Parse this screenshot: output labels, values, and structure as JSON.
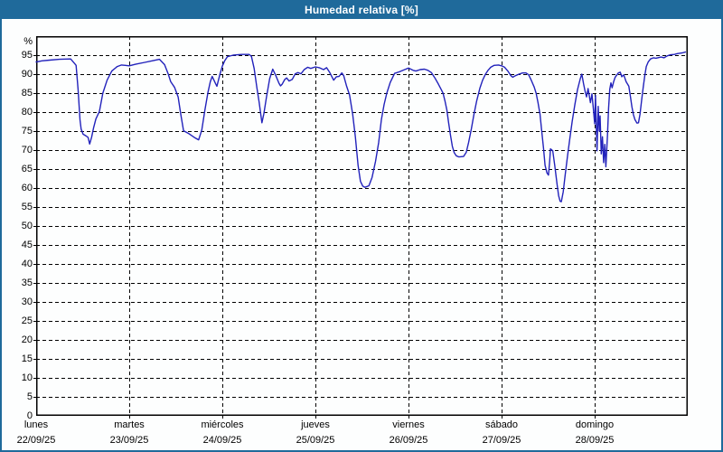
{
  "window": {
    "title": "Humedad relativa [%]"
  },
  "colors": {
    "titlebar_bg": "#1f6a9b",
    "window_border": "#1f6a9b",
    "line": "#2222bb",
    "grid": "#000000",
    "axis_box": "#000000",
    "background": "#fdfefe",
    "title_text": "#ffffff"
  },
  "chart_data": {
    "type": "line",
    "title": "Humedad relativa [%]",
    "ylabel": "%",
    "xlabel": "",
    "ylim": [
      0,
      100
    ],
    "grid": true,
    "legend": "none",
    "yticks": [
      0,
      5,
      10,
      15,
      20,
      25,
      30,
      35,
      40,
      45,
      50,
      55,
      60,
      65,
      70,
      75,
      80,
      85,
      90,
      95
    ],
    "x_days": [
      {
        "name": "lunes",
        "date": "22/09/25"
      },
      {
        "name": "martes",
        "date": "23/09/25"
      },
      {
        "name": "miércoles",
        "date": "24/09/25"
      },
      {
        "name": "jueves",
        "date": "25/09/25"
      },
      {
        "name": "viernes",
        "date": "26/09/25"
      },
      {
        "name": "sábado",
        "date": "27/09/25"
      },
      {
        "name": "domingo",
        "date": "28/09/25"
      }
    ],
    "x_range_hours": [
      0,
      168
    ],
    "series": [
      {
        "name": "Humedad relativa",
        "units": "%",
        "points": [
          [
            0,
            93.2
          ],
          [
            1.5,
            93.5
          ],
          [
            3.5,
            93.7
          ],
          [
            6,
            93.9
          ],
          [
            8.9,
            94
          ],
          [
            10,
            92.7
          ],
          [
            10.3,
            92.3
          ],
          [
            10.8,
            86
          ],
          [
            11.3,
            78
          ],
          [
            11.6,
            75.5
          ],
          [
            12.1,
            74.2
          ],
          [
            12.9,
            73.7
          ],
          [
            13.4,
            73.3
          ],
          [
            13.8,
            71.6
          ],
          [
            14.3,
            73.4
          ],
          [
            14.8,
            75.8
          ],
          [
            15.4,
            78.2
          ],
          [
            16.3,
            80.2
          ],
          [
            17.2,
            85
          ],
          [
            18.3,
            88.4
          ],
          [
            19.5,
            90.8
          ],
          [
            20.9,
            92
          ],
          [
            22,
            92.4
          ],
          [
            23,
            92.3
          ],
          [
            24,
            92.2
          ],
          [
            25.6,
            92.6
          ],
          [
            28,
            93.1
          ],
          [
            30.3,
            93.6
          ],
          [
            31.8,
            93.9
          ],
          [
            33.1,
            92.5
          ],
          [
            34,
            90.2
          ],
          [
            34.7,
            88
          ],
          [
            35.7,
            86.5
          ],
          [
            36.6,
            84
          ],
          [
            37.3,
            79.3
          ],
          [
            38,
            75.1
          ],
          [
            39.4,
            74.3
          ],
          [
            40.8,
            73.3
          ],
          [
            41.9,
            72.7
          ],
          [
            42.7,
            75.3
          ],
          [
            43.5,
            80.5
          ],
          [
            44.3,
            85.2
          ],
          [
            44.9,
            88
          ],
          [
            45.4,
            89.4
          ],
          [
            46.2,
            87.6
          ],
          [
            46.6,
            86.8
          ],
          [
            47.4,
            90
          ],
          [
            48,
            92.1
          ],
          [
            48.6,
            93.5
          ],
          [
            49.3,
            94.6
          ],
          [
            50.8,
            95
          ],
          [
            53,
            95.2
          ],
          [
            54.9,
            95.2
          ],
          [
            55.5,
            94.7
          ],
          [
            56.2,
            91.5
          ],
          [
            56.9,
            86.5
          ],
          [
            57.5,
            82.5
          ],
          [
            58.2,
            77.2
          ],
          [
            58.7,
            79.5
          ],
          [
            59.4,
            84
          ],
          [
            60.2,
            88.8
          ],
          [
            61,
            91.3
          ],
          [
            61.8,
            89.6
          ],
          [
            62.6,
            87.6
          ],
          [
            63,
            86.9
          ],
          [
            63.4,
            87.3
          ],
          [
            64.1,
            88.6
          ],
          [
            64.6,
            89
          ],
          [
            65.2,
            88.2
          ],
          [
            66,
            88.6
          ],
          [
            66.8,
            90.1
          ],
          [
            67.5,
            90.4
          ],
          [
            68.3,
            90.1
          ],
          [
            69.1,
            91.2
          ],
          [
            70,
            91.8
          ],
          [
            70.8,
            91.5
          ],
          [
            72,
            91.9
          ],
          [
            73,
            91.7
          ],
          [
            74.1,
            91.2
          ],
          [
            74.9,
            91.7
          ],
          [
            75.7,
            90.4
          ],
          [
            76.7,
            88.4
          ],
          [
            77.4,
            89.3
          ],
          [
            78.1,
            89.4
          ],
          [
            78.8,
            90.3
          ],
          [
            79.3,
            89.6
          ],
          [
            80,
            87
          ],
          [
            80.8,
            84.5
          ],
          [
            81.6,
            79.5
          ],
          [
            82.3,
            73.5
          ],
          [
            83,
            66
          ],
          [
            83.6,
            61.8
          ],
          [
            84.2,
            60.5
          ],
          [
            84.8,
            60.2
          ],
          [
            85.8,
            60.6
          ],
          [
            86.6,
            62.8
          ],
          [
            87.5,
            67
          ],
          [
            88.3,
            72
          ],
          [
            89,
            78
          ],
          [
            89.7,
            82
          ],
          [
            90.4,
            85
          ],
          [
            91.3,
            87.8
          ],
          [
            92.4,
            90.2
          ],
          [
            93.6,
            90.6
          ],
          [
            95,
            91.2
          ],
          [
            96,
            91.6
          ],
          [
            97.2,
            91
          ],
          [
            97.9,
            90.8
          ],
          [
            99,
            91.2
          ],
          [
            100.1,
            91.3
          ],
          [
            101,
            91
          ],
          [
            101.9,
            90.4
          ],
          [
            102.8,
            89
          ],
          [
            103.7,
            87.4
          ],
          [
            104.4,
            86
          ],
          [
            104.9,
            85
          ],
          [
            105.4,
            83
          ],
          [
            105.9,
            80.5
          ],
          [
            106.3,
            77.5
          ],
          [
            106.8,
            74
          ],
          [
            107.3,
            71
          ],
          [
            107.8,
            69.3
          ],
          [
            108.3,
            68.5
          ],
          [
            109,
            68.2
          ],
          [
            110.2,
            68.3
          ],
          [
            110.9,
            69.4
          ],
          [
            111.5,
            72
          ],
          [
            112.2,
            75.5
          ],
          [
            112.9,
            79.5
          ],
          [
            113.6,
            83
          ],
          [
            114.4,
            86.3
          ],
          [
            115.1,
            88.4
          ],
          [
            115.8,
            89.9
          ],
          [
            116.5,
            91
          ],
          [
            117.2,
            91.8
          ],
          [
            118.1,
            92.3
          ],
          [
            119.2,
            92.4
          ],
          [
            120,
            92.2
          ],
          [
            120.8,
            91.8
          ],
          [
            121.7,
            90.7
          ],
          [
            122.4,
            89.6
          ],
          [
            122.9,
            89.2
          ],
          [
            123.6,
            89.6
          ],
          [
            124.5,
            90
          ],
          [
            125.4,
            90.3
          ],
          [
            126.3,
            90.3
          ],
          [
            127,
            89.8
          ],
          [
            127.7,
            88.3
          ],
          [
            128.4,
            86.6
          ],
          [
            128.9,
            85
          ],
          [
            129.4,
            82.5
          ],
          [
            129.9,
            79.5
          ],
          [
            130.3,
            75.5
          ],
          [
            130.8,
            70.5
          ],
          [
            131.2,
            66
          ],
          [
            131.7,
            64
          ],
          [
            132.1,
            63.4
          ],
          [
            132.4,
            67
          ],
          [
            132.6,
            70.3
          ],
          [
            133.2,
            69.8
          ],
          [
            133.7,
            66
          ],
          [
            134.3,
            61
          ],
          [
            134.7,
            58
          ],
          [
            135.1,
            56.5
          ],
          [
            135.4,
            56.4
          ],
          [
            135.9,
            59
          ],
          [
            136.4,
            63.5
          ],
          [
            137,
            68.5
          ],
          [
            137.6,
            73
          ],
          [
            138.2,
            77.5
          ],
          [
            138.9,
            82
          ],
          [
            139.6,
            86
          ],
          [
            140.3,
            88.8
          ],
          [
            140.7,
            90
          ],
          [
            141.1,
            87.6
          ],
          [
            141.5,
            85.6
          ],
          [
            141.9,
            84
          ],
          [
            142.3,
            86.2
          ],
          [
            142.9,
            82.5
          ],
          [
            143.3,
            84.8
          ],
          [
            143.7,
            80.5
          ],
          [
            144,
            76.9
          ],
          [
            144.2,
            84.4
          ],
          [
            144.6,
            69.8
          ],
          [
            144.9,
            81.5
          ],
          [
            145.2,
            75
          ],
          [
            145.4,
            79
          ],
          [
            145.7,
            69
          ],
          [
            146,
            73.5
          ],
          [
            146.3,
            66.7
          ],
          [
            146.6,
            71.5
          ],
          [
            146.9,
            65.6
          ],
          [
            147.3,
            74
          ],
          [
            147.6,
            81
          ],
          [
            147.9,
            86
          ],
          [
            148.2,
            87.7
          ],
          [
            148.5,
            86.4
          ],
          [
            148.9,
            88
          ],
          [
            149.3,
            89.2
          ],
          [
            150.1,
            90.3
          ],
          [
            150.6,
            90.5
          ],
          [
            151,
            89.3
          ],
          [
            151.5,
            89.8
          ],
          [
            152.1,
            88
          ],
          [
            152.8,
            86.8
          ],
          [
            153.2,
            84.2
          ],
          [
            153.6,
            81.4
          ],
          [
            154,
            79.3
          ],
          [
            154.4,
            78
          ],
          [
            154.9,
            77.1
          ],
          [
            155.3,
            77.2
          ],
          [
            155.7,
            79.5
          ],
          [
            156.1,
            83
          ],
          [
            156.5,
            86.3
          ],
          [
            156.9,
            89.5
          ],
          [
            157.3,
            92
          ],
          [
            157.8,
            93.2
          ],
          [
            158.4,
            94
          ],
          [
            159.2,
            94.3
          ],
          [
            159.8,
            94.2
          ],
          [
            161.1,
            94.5
          ],
          [
            161.9,
            94.3
          ],
          [
            162.7,
            94.8
          ],
          [
            163.5,
            95.1
          ],
          [
            164.6,
            95.2
          ],
          [
            165.3,
            95.4
          ],
          [
            165.9,
            95.5
          ],
          [
            166.6,
            95.6
          ],
          [
            167.4,
            95.8
          ]
        ]
      }
    ]
  }
}
